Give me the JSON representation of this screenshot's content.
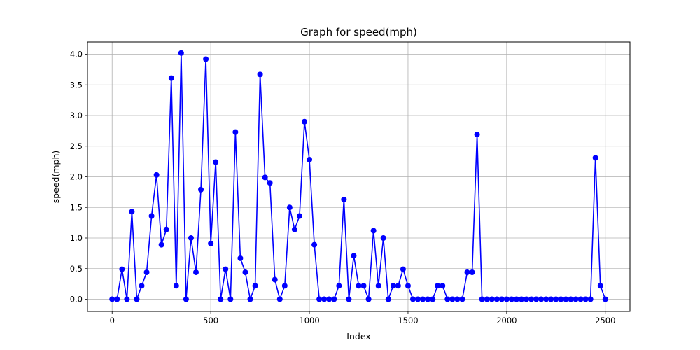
{
  "chart_data": {
    "type": "line",
    "title": "Graph for speed(mph)",
    "xlabel": "Index",
    "ylabel": "speed(mph)",
    "xlim": [
      -125,
      2625
    ],
    "ylim": [
      -0.2,
      4.2
    ],
    "grid": true,
    "line_color": "#0000ff",
    "marker": "circle",
    "x_ticks": [
      0,
      500,
      1000,
      1500,
      2000,
      2500
    ],
    "x_tick_labels": [
      "0",
      "500",
      "1000",
      "1500",
      "2000",
      "2500"
    ],
    "y_ticks": [
      0.0,
      0.5,
      1.0,
      1.5,
      2.0,
      2.5,
      3.0,
      3.5,
      4.0
    ],
    "y_tick_labels": [
      "0.0",
      "0.5",
      "1.0",
      "1.5",
      "2.0",
      "2.5",
      "3.0",
      "3.5",
      "4.0"
    ],
    "series": [
      {
        "x": [
          0,
          25,
          50,
          75,
          100,
          125,
          150,
          175,
          200,
          225,
          250,
          275,
          300,
          325,
          350,
          375,
          400,
          425,
          450,
          475,
          500,
          525,
          550,
          575,
          600,
          625,
          650,
          675,
          700,
          725,
          750,
          775,
          800,
          825,
          850,
          875,
          900,
          925,
          950,
          975,
          1000,
          1025,
          1050,
          1075,
          1100,
          1125,
          1150,
          1175,
          1200,
          1225,
          1250,
          1275,
          1300,
          1325,
          1350,
          1375,
          1400,
          1425,
          1450,
          1475,
          1500,
          1525,
          1550,
          1575,
          1600,
          1625,
          1650,
          1675,
          1700,
          1725,
          1750,
          1775,
          1800,
          1825,
          1850,
          1875,
          1900,
          1925,
          1950,
          1975,
          2000,
          2025,
          2050,
          2075,
          2100,
          2125,
          2150,
          2175,
          2200,
          2225,
          2250,
          2275,
          2300,
          2325,
          2350,
          2375,
          2400,
          2425,
          2450,
          2475,
          2500
        ],
        "y": [
          0.0,
          0.0,
          0.49,
          0.0,
          1.43,
          0.0,
          0.22,
          0.44,
          1.36,
          2.03,
          0.89,
          1.14,
          3.61,
          0.22,
          4.02,
          0.0,
          1.0,
          0.44,
          1.79,
          3.92,
          0.91,
          2.24,
          0.0,
          0.49,
          0.0,
          2.73,
          0.67,
          0.44,
          0.0,
          0.22,
          3.67,
          1.99,
          1.9,
          0.32,
          0.0,
          0.22,
          1.5,
          1.14,
          1.36,
          2.9,
          2.28,
          0.89,
          0.0,
          0.0,
          0.0,
          0.0,
          0.22,
          1.63,
          0.0,
          0.71,
          0.22,
          0.22,
          0.0,
          1.12,
          0.22,
          1.0,
          0.0,
          0.22,
          0.22,
          0.49,
          0.22,
          0.0,
          0.0,
          0.0,
          0.0,
          0.0,
          0.22,
          0.22,
          0.0,
          0.0,
          0.0,
          0.0,
          0.44,
          0.44,
          2.69,
          0.0,
          0.0,
          0.0,
          0.0,
          0.0,
          0.0,
          0.0,
          0.0,
          0.0,
          0.0,
          0.0,
          0.0,
          0.0,
          0.0,
          0.0,
          0.0,
          0.0,
          0.0,
          0.0,
          0.0,
          0.0,
          0.0,
          0.0,
          2.31,
          0.22,
          0.0
        ]
      }
    ]
  }
}
